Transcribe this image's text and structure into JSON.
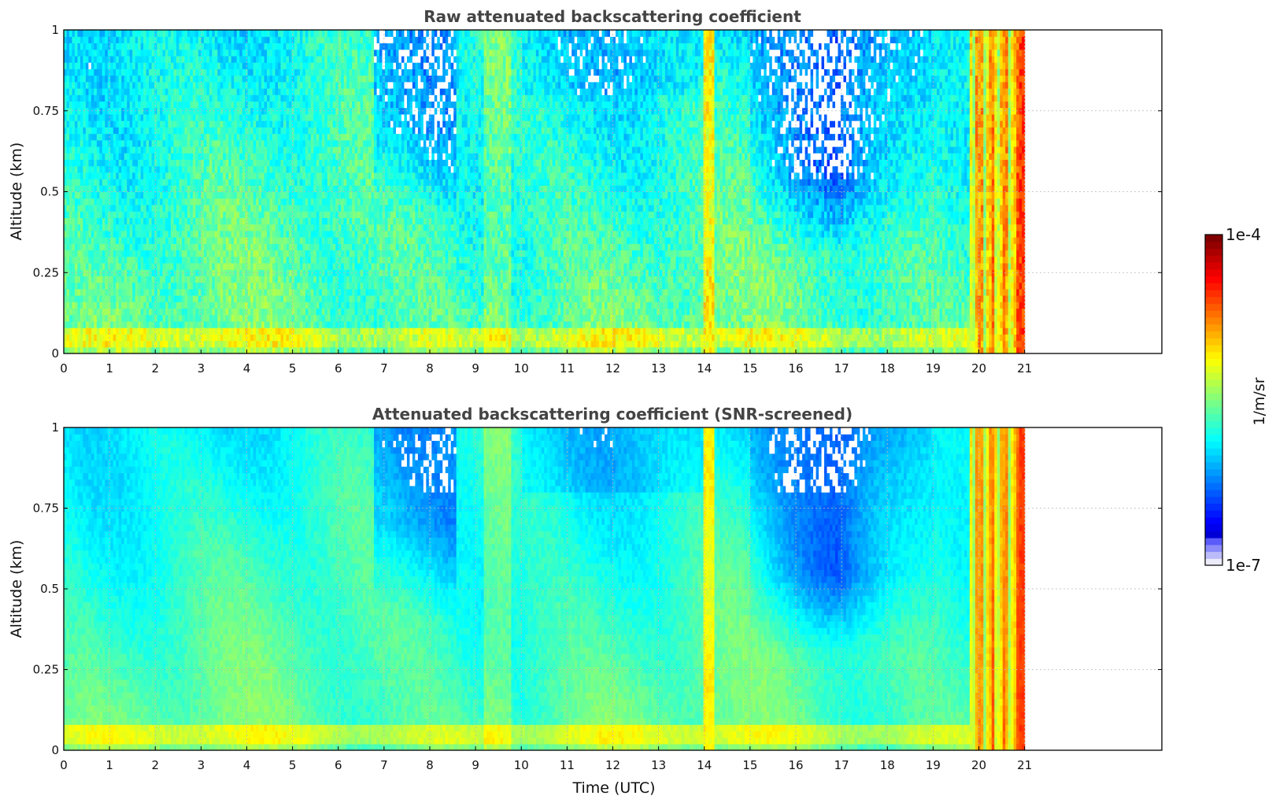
{
  "chart_data": [
    {
      "type": "heatmap",
      "title": "Raw attenuated backscattering coefficient",
      "xlabel": "",
      "ylabel": "Altitude (km)",
      "xlim": [
        0,
        24
      ],
      "ylim": [
        0,
        1
      ],
      "xticks": [
        0,
        1,
        2,
        3,
        4,
        5,
        6,
        7,
        8,
        9,
        10,
        11,
        12,
        13,
        14,
        15,
        16,
        17,
        18,
        19,
        20,
        21
      ],
      "yticks": [
        0,
        0.25,
        0.5,
        0.75,
        1
      ],
      "ytick_labels": [
        "0",
        "0.25",
        "0.5",
        "0.75",
        "1"
      ],
      "grid": true,
      "data_extent_hours": [
        0,
        21
      ],
      "screened": false,
      "colorscale": "jet",
      "log_scale": true,
      "features": {
        "surface_layer_altitude_km": 0.05,
        "bright_column_hours": [
          14.0,
          14.2
        ],
        "clear_air_region_hours": [
          15,
          19
        ],
        "clear_air_min_altitude_km": 0.3,
        "high_signal_region_hours": [
          19.8,
          21.0
        ]
      }
    },
    {
      "type": "heatmap",
      "title": "Attenuated backscattering coefficient (SNR-screened)",
      "xlabel": "Time (UTC)",
      "ylabel": "Altitude (km)",
      "xlim": [
        0,
        24
      ],
      "ylim": [
        0,
        1
      ],
      "xticks": [
        0,
        1,
        2,
        3,
        4,
        5,
        6,
        7,
        8,
        9,
        10,
        11,
        12,
        13,
        14,
        15,
        16,
        17,
        18,
        19,
        20,
        21
      ],
      "yticks": [
        0,
        0.25,
        0.5,
        0.75,
        1
      ],
      "ytick_labels": [
        "0",
        "0.25",
        "0.5",
        "0.75",
        "1"
      ],
      "grid": true,
      "data_extent_hours": [
        0,
        21
      ],
      "screened": true,
      "colorscale": "jet",
      "log_scale": true,
      "features": {
        "surface_layer_altitude_km": 0.05,
        "bright_column_hours": [
          14.0,
          14.2
        ],
        "clear_air_region_hours": [
          15,
          19
        ],
        "clear_air_min_altitude_km": 0.3,
        "high_signal_region_hours": [
          19.8,
          21.0
        ]
      }
    }
  ],
  "colorbar": {
    "label": "1/m/sr",
    "max_label": "1e-4",
    "min_label": "1e-7",
    "scale": "log",
    "colors": [
      "#e8e8f8",
      "#c0c0f0",
      "#8080e8",
      "#2020e0",
      "#0000ff",
      "#0050ff",
      "#0090ff",
      "#00c8ff",
      "#00f0f0",
      "#40ffb0",
      "#90ff60",
      "#d8ff20",
      "#ffe800",
      "#ffb000",
      "#ff7000",
      "#ff3000",
      "#e00000",
      "#800000"
    ]
  }
}
